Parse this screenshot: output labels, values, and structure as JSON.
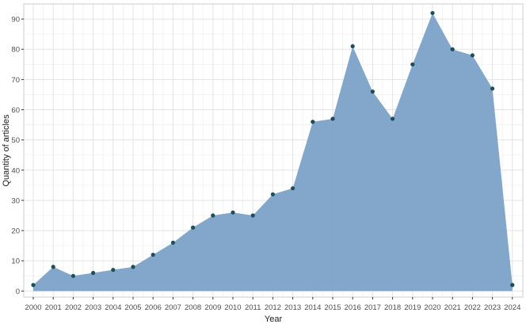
{
  "chart_data": {
    "type": "area",
    "xlabel": "Year",
    "ylabel": "Quantity of articles",
    "x": [
      "2000",
      "2001",
      "2002",
      "2003",
      "2004",
      "2005",
      "2006",
      "2007",
      "2008",
      "2009",
      "2010",
      "2011",
      "2012",
      "2013",
      "2014",
      "2015",
      "2016",
      "2017",
      "2018",
      "2019",
      "2020",
      "2021",
      "2022",
      "2023",
      "2024"
    ],
    "series": [
      {
        "values": [
          2,
          8,
          5,
          6,
          7,
          8,
          12,
          16,
          21,
          25,
          26,
          25,
          32,
          34,
          56,
          57,
          81,
          66,
          57,
          75,
          92,
          80,
          78,
          67,
          2
        ]
      }
    ],
    "ylim": [
      -2,
      95
    ],
    "yticks": [
      0,
      10,
      20,
      30,
      40,
      50,
      60,
      70,
      80,
      90
    ],
    "grid": true,
    "colors": {
      "area_fill": "#7ba2c8",
      "point": "#1d4e5a",
      "grid_major": "#e3e3e3",
      "grid_minor": "#f0f0f0",
      "panel_border": "#cccccc"
    }
  }
}
